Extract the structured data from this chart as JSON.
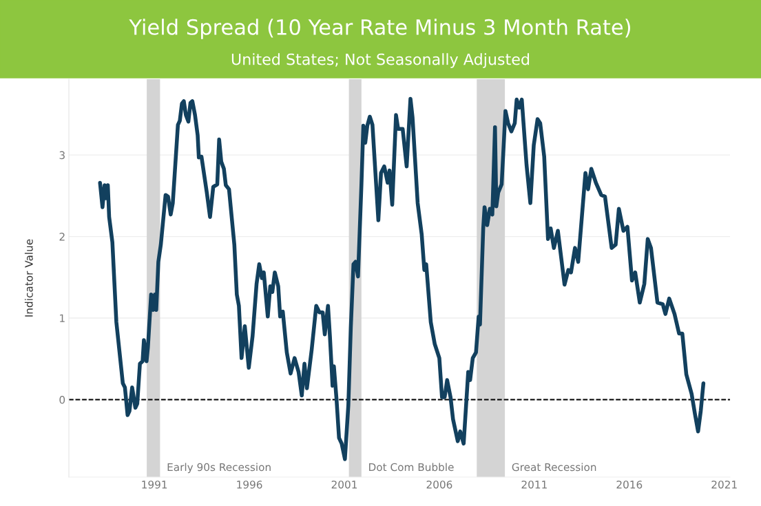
{
  "chart_data": {
    "type": "line",
    "title": "Yield Spread (10 Year Rate Minus 3 Month Rate)",
    "subtitle": "United States; Not Seasonally Adjusted",
    "ylabel": "Indicator Value",
    "x": [
      1988.14,
      1988.27,
      1988.38,
      1988.45,
      1988.55,
      1988.62,
      1988.79,
      1989.0,
      1989.34,
      1989.45,
      1989.59,
      1989.69,
      1989.83,
      1990.0,
      1990.1,
      1990.24,
      1990.38,
      1990.45,
      1990.59,
      1990.66,
      1990.83,
      1990.93,
      1991.03,
      1991.1,
      1991.21,
      1991.34,
      1991.59,
      1991.72,
      1991.86,
      1991.97,
      1992.24,
      1992.34,
      1992.45,
      1992.55,
      1992.66,
      1992.79,
      1992.9,
      1993.0,
      1993.14,
      1993.28,
      1993.34,
      1993.48,
      1993.76,
      1993.93,
      1994.1,
      1994.31,
      1994.41,
      1994.52,
      1994.66,
      1994.76,
      1994.93,
      1995.21,
      1995.34,
      1995.45,
      1995.59,
      1995.76,
      1995.97,
      1996.17,
      1996.38,
      1996.52,
      1996.66,
      1996.76,
      1996.97,
      1997.1,
      1997.21,
      1997.34,
      1997.52,
      1997.62,
      1997.76,
      1997.97,
      1998.17,
      1998.38,
      1998.59,
      1998.76,
      1998.9,
      1999.03,
      1999.28,
      1999.52,
      1999.69,
      1999.86,
      1999.97,
      2000.14,
      2000.24,
      2000.38,
      2000.45,
      2000.59,
      2000.72,
      2000.86,
      2001.03,
      2001.21,
      2001.34,
      2001.48,
      2001.59,
      2001.72,
      2001.9,
      2002.0,
      2002.1,
      2002.21,
      2002.34,
      2002.48,
      2002.79,
      2002.93,
      2003.1,
      2003.28,
      2003.38,
      2003.52,
      2003.72,
      2003.83,
      2004.07,
      2004.28,
      2004.48,
      2004.59,
      2004.86,
      2005.07,
      2005.21,
      2005.31,
      2005.55,
      2005.76,
      2006.0,
      2006.14,
      2006.28,
      2006.41,
      2006.59,
      2006.72,
      2006.97,
      2007.1,
      2007.28,
      2007.52,
      2007.62,
      2007.76,
      2007.93,
      2008.07,
      2008.14,
      2008.31,
      2008.38,
      2008.52,
      2008.66,
      2008.79,
      2008.93,
      2009.0,
      2009.1,
      2009.28,
      2009.48,
      2009.62,
      2009.79,
      2009.97,
      2010.07,
      2010.21,
      2010.34,
      2010.59,
      2010.79,
      2010.97,
      2011.17,
      2011.31,
      2011.52,
      2011.72,
      2011.86,
      2012.03,
      2012.24,
      2012.59,
      2012.79,
      2012.93,
      2013.14,
      2013.31,
      2013.69,
      2013.83,
      2014.0,
      2014.24,
      2014.52,
      2014.72,
      2015.07,
      2015.28,
      2015.45,
      2015.69,
      2015.9,
      2016.14,
      2016.31,
      2016.55,
      2016.79,
      2016.97,
      2017.14,
      2017.48,
      2017.76,
      2017.9,
      2018.1,
      2018.38,
      2018.62,
      2018.79,
      2019.0,
      2019.28,
      2019.45,
      2019.62,
      2019.76,
      2019.9
    ],
    "series": [
      {
        "color": "#12405e",
        "values": [
          2.66,
          2.36,
          2.63,
          2.47,
          2.63,
          2.24,
          1.93,
          0.95,
          0.2,
          0.15,
          -0.19,
          -0.14,
          0.15,
          -0.1,
          -0.05,
          0.44,
          0.47,
          0.73,
          0.47,
          0.64,
          1.29,
          1.1,
          1.29,
          1.1,
          1.69,
          1.9,
          2.51,
          2.49,
          2.27,
          2.41,
          3.37,
          3.42,
          3.63,
          3.66,
          3.49,
          3.41,
          3.64,
          3.66,
          3.49,
          3.24,
          2.97,
          2.98,
          2.54,
          2.24,
          2.61,
          2.64,
          3.19,
          2.92,
          2.83,
          2.63,
          2.58,
          1.9,
          1.29,
          1.15,
          0.51,
          0.9,
          0.39,
          0.78,
          1.42,
          1.66,
          1.49,
          1.56,
          1.02,
          1.39,
          1.32,
          1.56,
          1.39,
          1.02,
          1.08,
          0.58,
          0.32,
          0.51,
          0.34,
          0.05,
          0.44,
          0.14,
          0.61,
          1.15,
          1.07,
          1.07,
          0.8,
          1.15,
          0.78,
          0.17,
          0.41,
          0.0,
          -0.47,
          -0.54,
          -0.73,
          -0.07,
          0.88,
          1.66,
          1.69,
          1.51,
          2.64,
          3.36,
          3.15,
          3.36,
          3.47,
          3.37,
          2.2,
          2.78,
          2.86,
          2.66,
          2.81,
          2.39,
          3.49,
          3.32,
          3.32,
          2.86,
          3.69,
          3.46,
          2.41,
          2.03,
          1.59,
          1.66,
          0.95,
          0.68,
          0.51,
          0.03,
          0.03,
          0.24,
          0.03,
          -0.24,
          -0.51,
          -0.39,
          -0.54,
          0.34,
          0.24,
          0.51,
          0.58,
          1.02,
          0.92,
          2.1,
          2.36,
          2.14,
          2.34,
          2.27,
          3.34,
          2.37,
          2.54,
          2.64,
          3.54,
          3.39,
          3.29,
          3.39,
          3.68,
          3.58,
          3.68,
          2.88,
          2.41,
          3.12,
          3.44,
          3.39,
          2.98,
          1.97,
          2.1,
          1.86,
          2.07,
          1.41,
          1.59,
          1.56,
          1.86,
          1.69,
          2.78,
          2.58,
          2.83,
          2.66,
          2.51,
          2.49,
          1.86,
          1.9,
          2.34,
          2.07,
          2.12,
          1.46,
          1.56,
          1.19,
          1.42,
          1.97,
          1.86,
          1.19,
          1.17,
          1.05,
          1.24,
          1.05,
          0.81,
          0.81,
          0.31,
          0.07,
          -0.17,
          -0.39,
          -0.14,
          0.2
        ]
      }
    ],
    "xlim": [
      1986.5,
      2021.3
    ],
    "xticks": [
      1991,
      1996,
      2001,
      2006,
      2011,
      2016,
      2021
    ],
    "ylim": [
      -0.95,
      3.93
    ],
    "yticks": [
      0,
      1,
      2,
      3
    ],
    "ref_lines": [
      {
        "axis": "y",
        "value": 0,
        "color": "#000000",
        "line_style": "dashed"
      }
    ],
    "bands": [
      {
        "axis": "x",
        "from": 1990.6,
        "to": 1991.3,
        "label": "Early 90s Recession",
        "color": "#d4d4d4"
      },
      {
        "axis": "x",
        "from": 2001.24,
        "to": 2001.9,
        "label": "Dot Com Bubble",
        "color": "#d4d4d4"
      },
      {
        "axis": "x",
        "from": 2007.97,
        "to": 2009.45,
        "label": "Great Recession",
        "color": "#d4d4d4"
      }
    ],
    "grid": "y",
    "legend": false,
    "line_style": "solid",
    "marker": "none"
  }
}
